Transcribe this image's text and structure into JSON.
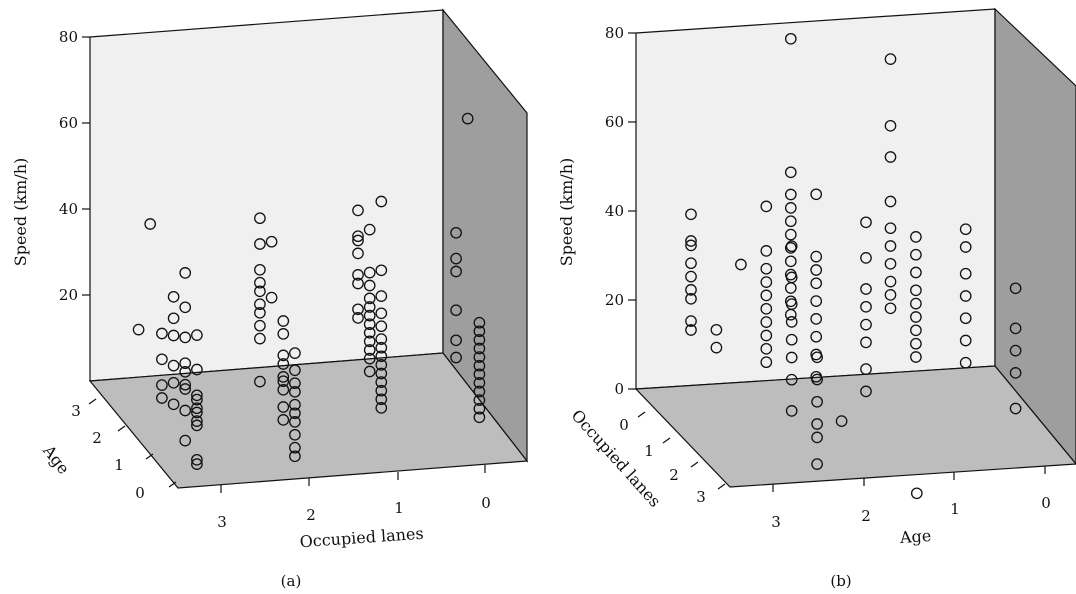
{
  "chart_data": [
    {
      "type": "scatter",
      "panel_label": "(a)",
      "zlabel": "Speed (km/h)",
      "xlabel": "Occupied lanes",
      "ylabel": "Age",
      "zticks": [
        "20",
        "40",
        "60",
        "80"
      ],
      "xticks": [
        "3",
        "2",
        "1",
        "0"
      ],
      "yticks": [
        "3",
        "2",
        "1",
        "0"
      ],
      "zlim": [
        0,
        80
      ],
      "grid": false,
      "marker": "open circle",
      "points": [
        {
          "lanes": 3,
          "age": 3,
          "speed": [
            14
          ]
        },
        {
          "lanes": 3,
          "age": 2.5,
          "speed": [
            42
          ]
        },
        {
          "lanes": 3,
          "age": 2,
          "speed": [
            5,
            8,
            14,
            20
          ]
        },
        {
          "lanes": 3,
          "age": 1.5,
          "speed": [
            7,
            12,
            16,
            23,
            27,
            32
          ]
        },
        {
          "lanes": 3,
          "age": 1,
          "speed": [
            2,
            9,
            14,
            15,
            18,
            20,
            26,
            33,
            41
          ]
        },
        {
          "lanes": 3,
          "age": 0.5,
          "speed": [
            0,
            1,
            9,
            10,
            12,
            13,
            15,
            16,
            22,
            30
          ]
        },
        {
          "lanes": 2,
          "age": 2,
          "speed": [
            7,
            17,
            20,
            23,
            25,
            28,
            30,
            33,
            39,
            45
          ]
        },
        {
          "lanes": 2,
          "age": 1.5,
          "speed": [
            30,
            43
          ]
        },
        {
          "lanes": 2,
          "age": 1,
          "speed": [
            5,
            8,
            12,
            14,
            15,
            18,
            20,
            25,
            28
          ]
        },
        {
          "lanes": 2,
          "age": 0.5,
          "speed": [
            0,
            2,
            5,
            8,
            10,
            12,
            15,
            17,
            20,
            24
          ]
        },
        {
          "lanes": 1,
          "age": 2,
          "speed": [
            20,
            22,
            28,
            30,
            35,
            38,
            39,
            45
          ]
        },
        {
          "lanes": 1,
          "age": 1.5,
          "speed": [
            11,
            14,
            16,
            18,
            20,
            22,
            24,
            26,
            28,
            31,
            34,
            44
          ]
        },
        {
          "lanes": 1,
          "age": 1,
          "speed": [
            6,
            8,
            10,
            12,
            14,
            16,
            18,
            20,
            22,
            25,
            28,
            32,
            38,
            54
          ]
        },
        {
          "lanes": 0,
          "age": 2,
          "speed": [
            9,
            13,
            20,
            29,
            32,
            38
          ]
        },
        {
          "lanes": 0,
          "age": 1.5,
          "speed": [
            68
          ]
        },
        {
          "lanes": 0,
          "age": 1,
          "speed": [
            2,
            4,
            6,
            8,
            10,
            12,
            14,
            16,
            18,
            20,
            22,
            24
          ]
        }
      ]
    },
    {
      "type": "scatter",
      "panel_label": "(b)",
      "zlabel": "Speed (km/h)",
      "xlabel": "Age",
      "ylabel": "Occupied lanes",
      "zticks": [
        "0",
        "20",
        "40",
        "60",
        "80"
      ],
      "xticks": [
        "3",
        "2",
        "1",
        "0"
      ],
      "yticks": [
        "0",
        "1",
        "2",
        "3"
      ],
      "zlim": [
        0,
        80
      ],
      "grid": false,
      "marker": "open circle",
      "points": [
        {
          "age": 3,
          "lanes": 0,
          "speed": [
            15,
            17,
            22,
            24,
            27,
            30,
            34,
            35,
            41
          ]
        },
        {
          "age": 3,
          "lanes": 1,
          "speed": [
            17,
            21
          ]
        },
        {
          "age": 2.5,
          "lanes": 0,
          "speed": [
            29
          ]
        },
        {
          "age": 2.5,
          "lanes": 1,
          "speed": [
            13,
            16,
            19,
            22,
            25,
            28,
            31,
            34,
            38,
            48
          ]
        },
        {
          "age": 2.5,
          "lanes": 2,
          "speed": [
            8,
            15,
            20,
            24,
            28,
            32,
            38,
            45
          ]
        },
        {
          "age": 2.5,
          "lanes": 3,
          "speed": [
            2,
            8,
            11,
            16,
            21,
            26
          ]
        },
        {
          "age": 2,
          "lanes": 0,
          "speed": [
            17,
            20,
            23,
            26,
            29,
            32,
            35,
            38,
            41,
            44,
            49,
            79
          ]
        },
        {
          "age": 2,
          "lanes": 1,
          "speed": [
            9,
            14,
            18,
            22,
            26,
            30,
            33,
            36,
            50
          ]
        },
        {
          "age": 2,
          "lanes": 2,
          "speed": [
            5
          ]
        },
        {
          "age": 1.5,
          "lanes": 1,
          "speed": [
            5,
            10,
            16,
            20,
            24,
            28,
            35,
            43
          ]
        },
        {
          "age": 1.5,
          "lanes": 3,
          "speed": [
            -6
          ]
        },
        {
          "age": 1,
          "lanes": 0,
          "speed": [
            17,
            20,
            23,
            27,
            31,
            35,
            41,
            51,
            58,
            73
          ]
        },
        {
          "age": 1,
          "lanes": 1,
          "speed": [
            12,
            15,
            18,
            21,
            24,
            27,
            31,
            35,
            39
          ]
        },
        {
          "age": 0.5,
          "lanes": 1,
          "speed": [
            10,
            15,
            20,
            25,
            30,
            36,
            40
          ]
        },
        {
          "age": 0,
          "lanes": 1,
          "speed": [
            -1,
            7,
            12,
            17,
            26
          ]
        }
      ]
    }
  ],
  "captions": {
    "a": "(a)",
    "b": "(b)"
  }
}
